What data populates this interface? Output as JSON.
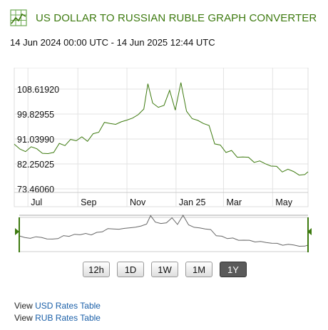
{
  "header": {
    "title": "US DOLLAR TO RUSSIAN RUBLE GRAPH CONVERTER",
    "date_range": "14 Jun 2024 00:00 UTC - 14 Jun 2025 12:44 UTC",
    "icon": "chart-grid-icon",
    "accent_color": "#3d7a0f"
  },
  "buttons": [
    {
      "label": "12h",
      "active": false
    },
    {
      "label": "1D",
      "active": false
    },
    {
      "label": "1W",
      "active": false
    },
    {
      "label": "1M",
      "active": false
    },
    {
      "label": "1Y",
      "active": true
    }
  ],
  "links": [
    {
      "prefix": "View",
      "text": "USD Rates Table"
    },
    {
      "prefix": "View",
      "text": "RUB Rates Table"
    }
  ],
  "chart_data": {
    "type": "line",
    "title": "",
    "xlabel": "",
    "ylabel": "",
    "series_color": "#3d7a0f",
    "grid": true,
    "ylim": [
      73.4606,
      108.6192
    ],
    "y_ticks": [
      "108.61920",
      "99.82955",
      "91.03990",
      "82.25025",
      "73.46060"
    ],
    "x_ticks": [
      "Jul",
      "Sep",
      "Nov",
      "Jan 25",
      "Mar",
      "May"
    ],
    "x": [
      "2024-06-14",
      "2024-06-21",
      "2024-06-28",
      "2024-07-05",
      "2024-07-12",
      "2024-07-19",
      "2024-07-26",
      "2024-08-02",
      "2024-08-09",
      "2024-08-16",
      "2024-08-23",
      "2024-08-30",
      "2024-09-06",
      "2024-09-13",
      "2024-09-20",
      "2024-09-27",
      "2024-10-04",
      "2024-10-11",
      "2024-10-18",
      "2024-10-25",
      "2024-11-01",
      "2024-11-08",
      "2024-11-15",
      "2024-11-22",
      "2024-11-27",
      "2024-12-03",
      "2024-12-10",
      "2024-12-17",
      "2024-12-24",
      "2024-12-31",
      "2025-01-07",
      "2025-01-14",
      "2025-01-21",
      "2025-01-28",
      "2025-02-04",
      "2025-02-11",
      "2025-02-18",
      "2025-02-25",
      "2025-03-04",
      "2025-03-11",
      "2025-03-18",
      "2025-03-25",
      "2025-04-01",
      "2025-04-08",
      "2025-04-15",
      "2025-04-22",
      "2025-04-29",
      "2025-05-06",
      "2025-05-13",
      "2025-05-20",
      "2025-05-27",
      "2025-06-03",
      "2025-06-10",
      "2025-06-14"
    ],
    "values": [
      89.2,
      87.5,
      86.6,
      88.3,
      87.6,
      86.0,
      85.9,
      86.3,
      89.5,
      88.7,
      90.9,
      90.4,
      91.8,
      90.2,
      92.9,
      93.4,
      96.9,
      96.5,
      96.2,
      97.1,
      97.7,
      98.4,
      99.6,
      101.6,
      110.5,
      103.7,
      102.2,
      102.9,
      108.2,
      101.2,
      110.9,
      100.8,
      98.2,
      97.6,
      96.5,
      95.8,
      89.3,
      88.9,
      86.3,
      87.0,
      84.6,
      84.7,
      84.6,
      82.8,
      83.3,
      82.3,
      81.5,
      81.4,
      79.4,
      80.4,
      79.6,
      78.3,
      78.5,
      79.5
    ]
  }
}
